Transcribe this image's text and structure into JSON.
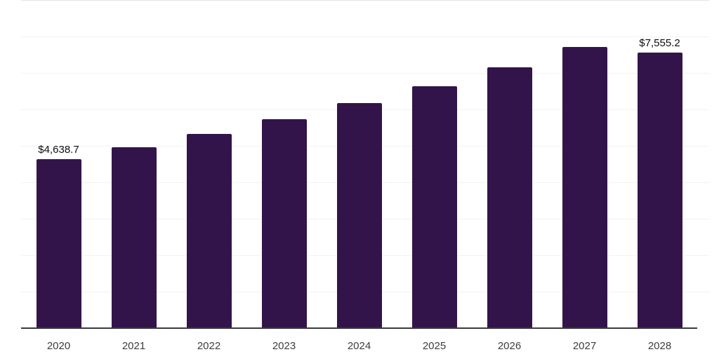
{
  "chart_data": {
    "type": "bar",
    "title": "",
    "xlabel": "",
    "ylabel": "",
    "categories": [
      "2020",
      "2021",
      "2022",
      "2023",
      "2024",
      "2025",
      "2026",
      "2027",
      "2028"
    ],
    "values": [
      4638.7,
      4960,
      5330,
      5740,
      6180,
      6640,
      7160,
      7720,
      7555.2
    ],
    "value_labels": [
      "$4,638.7",
      "",
      "",
      "",
      "",
      "",
      "",
      "",
      "$7,555.2"
    ],
    "ylim": [
      0,
      9000
    ],
    "gridline_interval": 1000,
    "grid": true,
    "legend": false,
    "bar_color": "#32144a",
    "axis_line_color": "#3a3a3a",
    "gridline_color": "#f2f2f2",
    "value_label_color": "#0d0d0d",
    "tick_label_color": "#3d3d3d",
    "background_color": "#ffffff"
  }
}
